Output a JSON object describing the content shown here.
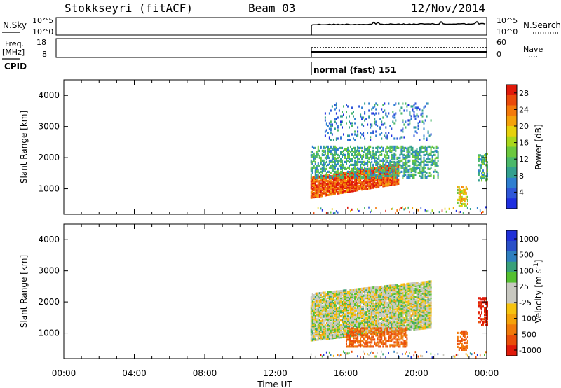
{
  "header": {
    "station": "Stokkseyri (fitACF)",
    "beam": "Beam 03",
    "date": "12/Nov/2014"
  },
  "panels": {
    "nsky_label": "N.Sky",
    "nsky_ticks": [
      "10^5",
      "10^0"
    ],
    "nsearch_label": "N.Search",
    "nsearch_ticks": [
      "10^5",
      "10^0"
    ],
    "freq_label": "Freq.",
    "freq_unit": "[MHz]",
    "freq_ticks": [
      "18",
      "8"
    ],
    "nave_label": "Nave",
    "nave_ticks": [
      "60",
      "0"
    ],
    "cpid_label": "CPID",
    "cpid_value": "normal (fast) 151"
  },
  "colors": {
    "power": [
      "#1f2fe0",
      "#2f57d8",
      "#2f7fd0",
      "#33a08f",
      "#4bb86a",
      "#6cc83e",
      "#a9d71c",
      "#e6d10c",
      "#f4a20a",
      "#f47a0a",
      "#ea4a0a",
      "#e01a0a"
    ],
    "velocity": [
      "#e01a0a",
      "#ea4f0a",
      "#f07a0a",
      "#f4a20a",
      "#f6c30f",
      "#c8c8c0",
      "#c8c8c0",
      "#55c030",
      "#3aa07a",
      "#2f7fbf",
      "#2a50c8",
      "#2030d8"
    ]
  },
  "chart_data": [
    {
      "type": "heatmap",
      "title": "",
      "xlabel": "",
      "ylabel": "Slant Range [km]",
      "x_ticks": [
        "00:00",
        "04:00",
        "08:00",
        "12:00",
        "16:00",
        "20:00",
        "00:00"
      ],
      "xlim_hours": [
        0,
        24
      ],
      "ylim_km": [
        180,
        4500
      ],
      "y_ticks": [
        1000,
        2000,
        3000,
        4000
      ],
      "data_start_hour": 14.0,
      "colorbar": {
        "label": "Power [dB]",
        "range": [
          0,
          30
        ],
        "ticks": [
          4,
          8,
          12,
          16,
          20,
          24,
          28
        ]
      },
      "regions": [
        {
          "feature": "intense band",
          "t": [
            14.0,
            19.0
          ],
          "range_km": [
            750,
            1400
          ],
          "value": 26
        },
        {
          "feature": "diffuse echoes",
          "t": [
            14.0,
            21.2
          ],
          "range_km": [
            1400,
            2400
          ],
          "value": 10
        },
        {
          "feature": "upper echoes",
          "t": [
            14.8,
            20.8
          ],
          "range_km": [
            2600,
            3800
          ],
          "value": 6
        },
        {
          "feature": "late patch",
          "t": [
            22.3,
            22.9
          ],
          "range_km": [
            500,
            1100
          ],
          "value": 18
        },
        {
          "feature": "end patch",
          "t": [
            23.5,
            24.0
          ],
          "range_km": [
            1300,
            2200
          ],
          "value": 12
        }
      ]
    },
    {
      "type": "heatmap",
      "title": "",
      "xlabel": "Time UT",
      "ylabel": "Slant Range [km]",
      "x_ticks": [
        "00:00",
        "04:00",
        "08:00",
        "12:00",
        "16:00",
        "20:00",
        "00:00"
      ],
      "xlim_hours": [
        0,
        24
      ],
      "ylim_km": [
        180,
        4500
      ],
      "y_ticks": [
        1000,
        2000,
        3000,
        4000
      ],
      "data_start_hour": 14.0,
      "colorbar": {
        "label": "Velocity [m s^-1]",
        "tick_labels": [
          "1000",
          "500",
          "100",
          "25",
          "-25",
          "-100",
          "-500",
          "-1000"
        ]
      },
      "regions": [
        {
          "feature": "ground scatter",
          "t": [
            14.0,
            20.8
          ],
          "range_km": [
            800,
            2300
          ],
          "value": 0
        },
        {
          "feature": "ionospheric",
          "t": [
            16.0,
            19.5
          ],
          "range_km": [
            600,
            1200
          ],
          "value": -300
        },
        {
          "feature": "late patch",
          "t": [
            22.3,
            22.9
          ],
          "range_km": [
            500,
            1100
          ],
          "value": -300
        },
        {
          "feature": "end patch",
          "t": [
            23.5,
            24.0
          ],
          "range_km": [
            1300,
            2200
          ],
          "value": -600
        }
      ]
    }
  ]
}
